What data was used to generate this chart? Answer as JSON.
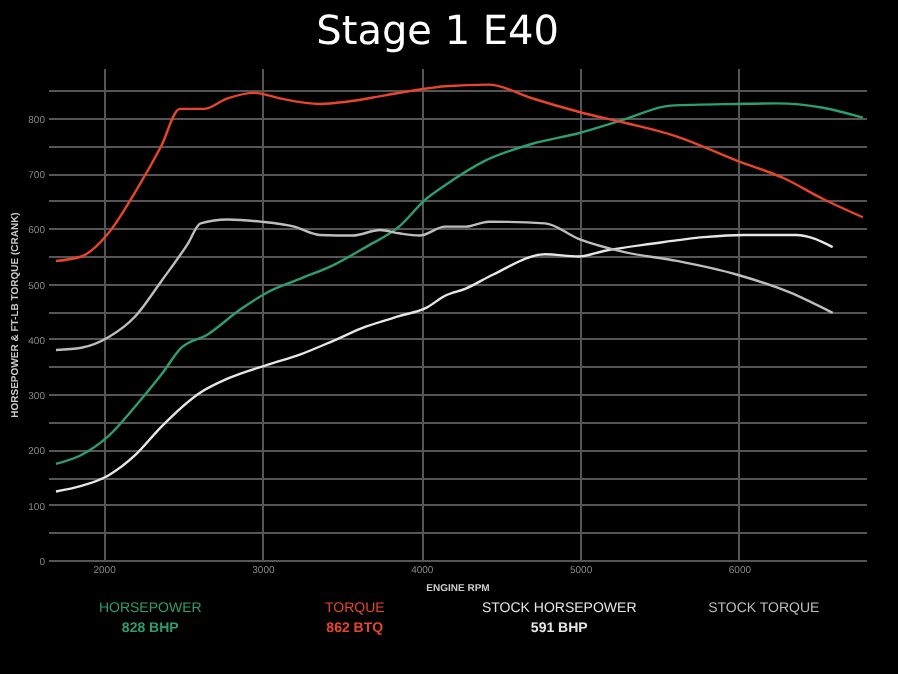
{
  "chart_data": {
    "type": "line",
    "title": "Stage 1 E40",
    "xlabel": "ENGINE RPM",
    "ylabel": "HORSEPOWER & FT-LB TORQUE (CRANK)",
    "xlim": [
      1650,
      6800
    ],
    "ylim": [
      0,
      890
    ],
    "xticks": [
      2000,
      3000,
      4000,
      5000,
      6000
    ],
    "yticks": [
      0,
      {
        "value": 50,
        "label": null
      },
      100,
      {
        "value": 150,
        "label": null
      },
      200,
      {
        "value": 250,
        "label": null
      },
      300,
      {
        "value": 350,
        "label": null
      },
      400,
      {
        "value": 450,
        "label": null
      },
      500,
      {
        "value": 550,
        "label": null
      },
      600,
      {
        "value": 650,
        "label": null
      },
      700,
      {
        "value": 750,
        "label": null
      },
      800,
      {
        "value": 850,
        "label": null
      }
    ],
    "grid": true,
    "legend": "bottom",
    "line_style": "solid",
    "annotations": [
      "828 BHP",
      "862 BTQ",
      "591 BHP"
    ],
    "series": [
      {
        "name": "HORSEPOWER",
        "color": "#2e9e6e",
        "x": [
          1700,
          1860,
          2030,
          2200,
          2360,
          2490,
          2650,
          2860,
          3030,
          3240,
          3450,
          3650,
          3860,
          4030,
          4150,
          4400,
          4700,
          4990,
          5280,
          5570,
          5990,
          6240,
          6530,
          6780
        ],
        "values": [
          174,
          190,
          224,
          278,
          334,
          384,
          407,
          453,
          484,
          509,
          534,
          566,
          603,
          653,
          678,
          722,
          753,
          772,
          797,
          822,
          825,
          826,
          818,
          800
        ]
      },
      {
        "name": "TORQUE",
        "color": "#e8452c",
        "x": [
          1700,
          1860,
          2030,
          2200,
          2360,
          2480,
          2630,
          2780,
          2950,
          3110,
          3360,
          3530,
          3780,
          3990,
          4150,
          4425,
          4700,
          5000,
          5280,
          5610,
          5990,
          6280,
          6530,
          6780
        ],
        "values": [
          541,
          549,
          591,
          666,
          747,
          816,
          816,
          835,
          845,
          835,
          825,
          829,
          841,
          851,
          857,
          860,
          835,
          810,
          791,
          766,
          722,
          691,
          653,
          620
        ]
      },
      {
        "name": "STOCK HORSEPOWER",
        "color": "#e6e6e6",
        "x": [
          1700,
          1860,
          2030,
          2200,
          2360,
          2610,
          2780,
          3030,
          3240,
          3450,
          3650,
          3860,
          4030,
          4150,
          4280,
          4450,
          4780,
          4990,
          5150,
          5450,
          5780,
          6030,
          6360,
          6590
        ],
        "values": [
          124,
          134,
          153,
          190,
          240,
          303,
          328,
          353,
          372,
          397,
          422,
          441,
          456,
          478,
          491,
          516,
          553,
          549,
          559,
          572,
          584,
          588,
          588,
          566
        ]
      },
      {
        "name": "STOCK TORQUE",
        "color": "#bdbdbd",
        "x": [
          1700,
          1860,
          2030,
          2200,
          2360,
          2530,
          2610,
          2780,
          2990,
          3200,
          3360,
          3570,
          3740,
          3860,
          3990,
          4150,
          4280,
          4425,
          4780,
          4990,
          5280,
          5610,
          5990,
          6320,
          6590
        ],
        "values": [
          380,
          384,
          403,
          441,
          503,
          572,
          609,
          616,
          612,
          603,
          588,
          587,
          597,
          591,
          587,
          603,
          603,
          612,
          609,
          581,
          557,
          541,
          516,
          484,
          447
        ]
      }
    ]
  }
}
